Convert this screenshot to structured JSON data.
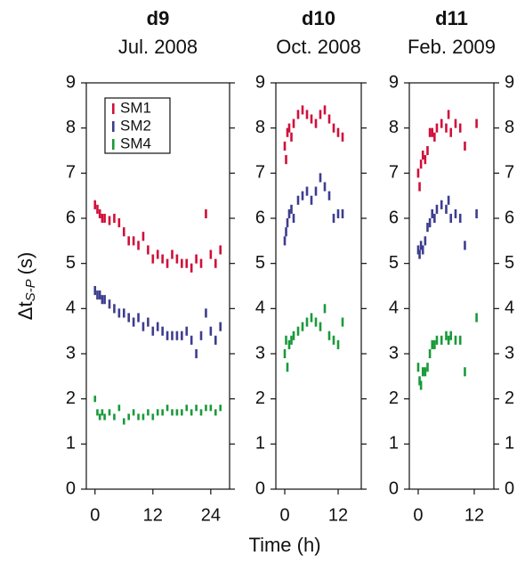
{
  "xlabel": "Time (h)",
  "chart_data": [
    {
      "type": "scatter",
      "title": "d9",
      "subtitle": "Jul. 2008",
      "ylabel": "Δt",
      "ylabel_sub": "S-P",
      "ylabel_unit": "(s)",
      "xlim": [
        -1.8,
        27.9
      ],
      "xticks": [
        0,
        12,
        24
      ],
      "ylim": [
        0,
        9
      ],
      "yticks": [
        0,
        1,
        2,
        3,
        4,
        5,
        6,
        7,
        8,
        9
      ],
      "left_tick_labels": true,
      "right_tick_labels": false,
      "legend": "upper left",
      "series": [
        {
          "name": "SM1",
          "color": "#d0103a",
          "error": 0.1,
          "x": [
            0,
            0.5,
            1,
            1.5,
            2,
            3,
            4,
            5,
            6,
            7,
            8,
            9,
            10,
            11,
            12,
            13,
            14,
            15,
            16,
            17,
            18,
            19,
            20,
            21,
            22,
            23,
            24,
            25,
            26
          ],
          "values": [
            6.3,
            6.2,
            6.1,
            6.0,
            6.0,
            5.95,
            6.0,
            5.9,
            5.7,
            5.5,
            5.5,
            5.4,
            5.6,
            5.3,
            5.1,
            5.2,
            5.1,
            5.0,
            5.2,
            5.1,
            5.0,
            5.0,
            4.9,
            5.1,
            5.0,
            6.1,
            5.2,
            5.0,
            5.3
          ]
        },
        {
          "name": "SM2",
          "color": "#3d3d8f",
          "error": 0.1,
          "x": [
            0,
            0.5,
            1,
            1.5,
            2,
            3,
            4,
            5,
            6,
            7,
            8,
            9,
            10,
            11,
            12,
            13,
            14,
            15,
            16,
            17,
            18,
            19,
            20,
            21,
            22,
            23,
            24,
            25,
            26
          ],
          "values": [
            4.4,
            4.3,
            4.3,
            4.2,
            4.2,
            4.1,
            4.0,
            3.9,
            3.9,
            3.8,
            3.7,
            3.8,
            3.6,
            3.7,
            3.5,
            3.6,
            3.5,
            3.4,
            3.4,
            3.4,
            3.4,
            3.5,
            3.3,
            3.0,
            3.4,
            3.9,
            3.5,
            3.3,
            3.6
          ]
        },
        {
          "name": "SM4",
          "color": "#1a9a3a",
          "error": 0.07,
          "x": [
            0,
            0.5,
            1,
            1.5,
            2,
            3,
            4,
            5,
            6,
            7,
            8,
            9,
            10,
            11,
            12,
            13,
            14,
            15,
            16,
            17,
            18,
            19,
            20,
            21,
            22,
            23,
            24,
            25,
            26
          ],
          "values": [
            2.0,
            1.7,
            1.6,
            1.7,
            1.6,
            1.7,
            1.6,
            1.8,
            1.5,
            1.6,
            1.7,
            1.6,
            1.6,
            1.7,
            1.6,
            1.7,
            1.7,
            1.8,
            1.7,
            1.7,
            1.7,
            1.8,
            1.7,
            1.8,
            1.7,
            1.8,
            1.8,
            1.7,
            1.8
          ]
        }
      ]
    },
    {
      "type": "scatter",
      "title": "d10",
      "subtitle": "Oct. 2008",
      "xlim": [
        -2,
        17.2
      ],
      "xticks": [
        0,
        12
      ],
      "ylim": [
        0,
        9
      ],
      "yticks": [
        0,
        1,
        2,
        3,
        4,
        5,
        6,
        7,
        8,
        9
      ],
      "left_tick_labels": true,
      "right_tick_labels": false,
      "series": [
        {
          "color": "#d0103a",
          "error": 0.1,
          "x": [
            0,
            0.3,
            0.6,
            1,
            1.5,
            2,
            3,
            4,
            5,
            6,
            7,
            8,
            9,
            10,
            11,
            12,
            13
          ],
          "values": [
            7.6,
            7.3,
            7.9,
            8.0,
            7.8,
            8.1,
            8.3,
            8.4,
            8.3,
            8.2,
            8.1,
            8.3,
            8.4,
            8.2,
            8.0,
            7.9,
            7.8
          ]
        },
        {
          "color": "#3d3d8f",
          "error": 0.1,
          "x": [
            0,
            0.3,
            0.6,
            1,
            1.5,
            2,
            3,
            4,
            5,
            6,
            7,
            8,
            9,
            10,
            11,
            12,
            13
          ],
          "values": [
            5.5,
            5.7,
            5.9,
            6.1,
            6.2,
            6.0,
            6.4,
            6.5,
            6.6,
            6.4,
            6.6,
            6.9,
            6.7,
            6.5,
            6.0,
            6.1,
            6.1
          ]
        },
        {
          "color": "#1a9a3a",
          "error": 0.1,
          "x": [
            0,
            0.3,
            0.6,
            1,
            1.5,
            2,
            3,
            4,
            5,
            6,
            7,
            8,
            9,
            10,
            11,
            12,
            13
          ],
          "values": [
            3.0,
            3.3,
            2.7,
            3.2,
            3.3,
            3.4,
            3.5,
            3.6,
            3.7,
            3.8,
            3.7,
            3.6,
            4.0,
            3.4,
            3.3,
            3.2,
            3.7
          ]
        }
      ]
    },
    {
      "type": "scatter",
      "title": "d11",
      "subtitle": "Feb. 2009",
      "xlim": [
        -1.9,
        16.2
      ],
      "xticks": [
        0,
        12
      ],
      "ylim": [
        0,
        9
      ],
      "yticks": [
        0,
        1,
        2,
        3,
        4,
        5,
        6,
        7,
        8,
        9
      ],
      "left_tick_labels": true,
      "right_tick_labels": true,
      "series": [
        {
          "color": "#d0103a",
          "error": 0.1,
          "x": [
            0,
            0.3,
            0.6,
            1,
            1.5,
            2,
            2.5,
            3,
            3.5,
            4,
            5,
            6,
            6.5,
            7,
            8,
            9,
            10,
            12.5
          ],
          "values": [
            7.0,
            6.7,
            7.2,
            7.4,
            7.3,
            7.5,
            7.9,
            7.9,
            7.8,
            8.0,
            8.1,
            8.0,
            8.3,
            7.9,
            8.1,
            8.0,
            7.6,
            8.1
          ]
        },
        {
          "color": "#3d3d8f",
          "error": 0.1,
          "x": [
            0,
            0.3,
            0.6,
            1,
            1.5,
            2,
            2.5,
            3,
            3.5,
            4,
            5,
            6,
            6.5,
            7,
            8,
            9,
            10,
            12.5
          ],
          "values": [
            5.3,
            5.2,
            5.4,
            5.3,
            5.5,
            5.8,
            5.9,
            6.1,
            6.0,
            6.2,
            6.3,
            6.2,
            6.4,
            6.0,
            6.1,
            6.0,
            5.4,
            6.1
          ]
        },
        {
          "color": "#1a9a3a",
          "error": 0.1,
          "x": [
            0,
            0.3,
            0.6,
            1,
            1.5,
            2,
            2.5,
            3,
            3.5,
            4,
            5,
            6,
            6.5,
            7,
            8,
            9,
            10,
            12.5
          ],
          "values": [
            2.7,
            2.4,
            2.3,
            2.6,
            2.6,
            2.7,
            3.0,
            3.2,
            3.2,
            3.3,
            3.3,
            3.4,
            3.3,
            3.4,
            3.3,
            3.3,
            2.6,
            3.8
          ]
        }
      ]
    }
  ]
}
